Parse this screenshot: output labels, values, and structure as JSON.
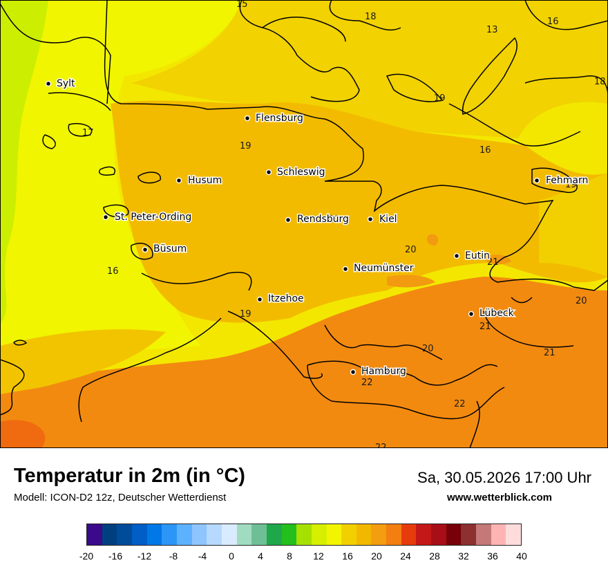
{
  "map": {
    "cities": [
      {
        "name": "Sylt"
      },
      {
        "name": "Flensburg"
      },
      {
        "name": "Schleswig"
      },
      {
        "name": "Husum"
      },
      {
        "name": "St. Peter-Ording"
      },
      {
        "name": "Rendsburg"
      },
      {
        "name": "Kiel"
      },
      {
        "name": "Büsum"
      },
      {
        "name": "Eutin"
      },
      {
        "name": "Neumünster"
      },
      {
        "name": "Fehmarn"
      },
      {
        "name": "Itzehoe"
      },
      {
        "name": "Lübeck"
      },
      {
        "name": "Hamburg"
      }
    ],
    "isoline_labels": [
      "15",
      "18",
      "13",
      "16",
      "18",
      "19",
      "17",
      "19",
      "16",
      "19",
      "20",
      "20",
      "21",
      "16",
      "20",
      "19",
      "21",
      "20",
      "21",
      "22",
      "22",
      "22"
    ]
  },
  "footer": {
    "title": "Temperatur in 2m (in °C)",
    "model": "Modell: ICON-D2 12z, Deutscher Wetterdienst",
    "datetime": "Sa, 30.05.2026 17:00 Uhr",
    "website": "www.wetterblick.com"
  },
  "legend": {
    "colors": [
      "#3a0a8a",
      "#003f7f",
      "#004c9b",
      "#005ec6",
      "#0078e6",
      "#2c96f7",
      "#5db2ff",
      "#8ec5ff",
      "#b6d9ff",
      "#d9ebff",
      "#a0dcc0",
      "#6fbf96",
      "#1fa84a",
      "#23c01d",
      "#a6e000",
      "#d6ef00",
      "#f3f500",
      "#f2d000",
      "#f2b800",
      "#f39d10",
      "#f27f10",
      "#e63c0c",
      "#c41818",
      "#a80e18",
      "#780008",
      "#8c3030",
      "#c47878",
      "#ffb4b4",
      "#ffdcdc"
    ],
    "ticks": [
      "-20",
      "-16",
      "-12",
      "-8",
      "-4",
      "0",
      "4",
      "8",
      "12",
      "16",
      "20",
      "24",
      "28",
      "32",
      "36",
      "40"
    ]
  }
}
